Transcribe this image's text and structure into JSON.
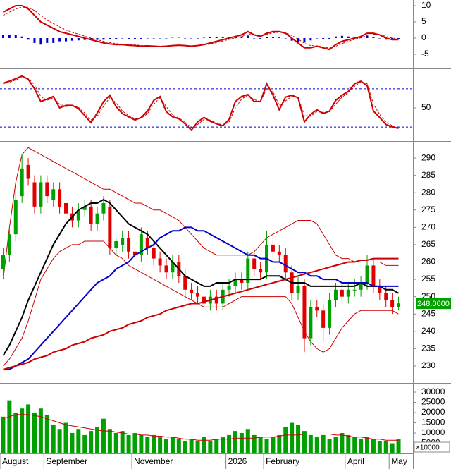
{
  "chart_data": [
    {
      "type": "macd",
      "ylim": [
        -9.35,
        11.74
      ],
      "yticks": [
        10,
        5,
        0,
        -5
      ],
      "histogram": {
        "color": "#0000cc",
        "values": [
          1,
          1,
          1,
          0.5,
          -0.5,
          -1.5,
          -2,
          -1.5,
          -1.5,
          -1,
          -1,
          -0.8,
          -0.7,
          -0.6,
          -0.5,
          -0.5,
          -0.5,
          -0.4,
          -0.3,
          -0.1,
          -0.2,
          -0.2,
          -0.2,
          -0.1,
          -0.1,
          -0.1,
          0,
          0.1,
          0.1,
          0,
          -0.1,
          0,
          0.1,
          0.3,
          0.4,
          0.4,
          0.4,
          0.5,
          0.5,
          0.8,
          0,
          -0.2,
          0.4,
          0.4,
          0.2,
          -0.1,
          -0.8,
          -1.2,
          -1.4,
          -0.7,
          -0.1,
          -0.3,
          -0.4,
          0.5,
          0.7,
          0.5,
          0.4,
          0.4,
          0.7,
          0.3,
          -0.1,
          -0.5,
          -0.5,
          -0.2
        ]
      },
      "series": [
        {
          "color": "#cc0000",
          "values": [
            8,
            9,
            10,
            10,
            9,
            7,
            5,
            4,
            3,
            2,
            1.5,
            1,
            0.5,
            0,
            -0.5,
            -1,
            -1.5,
            -1.8,
            -2,
            -2,
            -2.2,
            -2.3,
            -2.5,
            -2.4,
            -2.5,
            -2.6,
            -2.5,
            -2.3,
            -2.2,
            -2.3,
            -2.5,
            -2.3,
            -2,
            -1.5,
            -1,
            -0.5,
            0,
            0.5,
            1,
            2,
            1,
            0.5,
            1.5,
            2,
            2,
            1.5,
            0,
            -1.5,
            -3,
            -3,
            -2.5,
            -3,
            -3.5,
            -2,
            -1,
            -0.5,
            0,
            0.5,
            1.5,
            1.5,
            1,
            0,
            -0.5,
            -0.5
          ]
        },
        {
          "color": "#cc0000",
          "dashed": true,
          "values": [
            7,
            8,
            9,
            9.5,
            9.5,
            8.5,
            7,
            5.5,
            4.5,
            3.5,
            2.5,
            1.8,
            1.2,
            0.6,
            0,
            -0.5,
            -1,
            -1.4,
            -1.7,
            -1.9,
            -2,
            -2.1,
            -2.3,
            -2.3,
            -2.4,
            -2.5,
            -2.5,
            -2.4,
            -2.3,
            -2.3,
            -2.4,
            -2.3,
            -2.1,
            -1.8,
            -1.4,
            -0.9,
            -0.4,
            0,
            0.5,
            1.2,
            1,
            0.7,
            1.1,
            1.6,
            1.8,
            1.6,
            0.8,
            -0.3,
            -1.6,
            -2.3,
            -2.4,
            -2.7,
            -3.1,
            -2.5,
            -1.7,
            -1,
            -0.4,
            0.1,
            0.8,
            1.2,
            1.1,
            0.5,
            0,
            -0.3
          ]
        }
      ]
    },
    {
      "type": "oscillator",
      "ylim": [
        -2,
        112
      ],
      "yticks": [
        50
      ],
      "levels": [
        80,
        20
      ],
      "level_color": "#0000cc",
      "series": [
        {
          "color": "#cc0000",
          "values": [
            89,
            92,
            96,
            100,
            95,
            80,
            60,
            64,
            68,
            50,
            54,
            54,
            49,
            38,
            27,
            42,
            60,
            70,
            52,
            41,
            36,
            31,
            35,
            45,
            62,
            68,
            44,
            36,
            33,
            25,
            15,
            28,
            35,
            29,
            25,
            22,
            32,
            60,
            68,
            71,
            60,
            60,
            88,
            70,
            47,
            67,
            70,
            66,
            28,
            40,
            47,
            41,
            45,
            62,
            70,
            76,
            88,
            92,
            85,
            45,
            35,
            24,
            20,
            18
          ]
        },
        {
          "color": "#cc0000",
          "dashed": true,
          "values": [
            88,
            90,
            94,
            98,
            97,
            86,
            68,
            62,
            66,
            56,
            52,
            54,
            51,
            42,
            31,
            37,
            53,
            66,
            58,
            45,
            38,
            33,
            34,
            41,
            56,
            66,
            52,
            39,
            34,
            28,
            19,
            24,
            32,
            31,
            26,
            23,
            28,
            50,
            64,
            70,
            63,
            60,
            80,
            75,
            54,
            61,
            68,
            67,
            38,
            37,
            44,
            43,
            44,
            56,
            67,
            74,
            84,
            91,
            88,
            56,
            40,
            28,
            22,
            19
          ]
        }
      ]
    },
    {
      "type": "candlestick",
      "ylim": [
        225.1,
        294.9
      ],
      "yticks": [
        230,
        235,
        240,
        245,
        250,
        255,
        260,
        265,
        270,
        275,
        280,
        285,
        290
      ],
      "up_color": "#00a000",
      "down_color": "#e00000",
      "open": [
        258,
        262,
        268,
        279,
        288,
        283,
        276,
        283,
        278,
        281,
        277,
        274,
        272,
        275,
        276,
        271,
        274,
        276,
        264,
        265,
        267,
        263,
        262,
        267,
        264,
        261,
        259,
        257,
        260,
        256,
        252,
        251,
        250,
        248,
        250,
        248,
        252,
        253,
        255,
        254,
        261,
        258,
        257,
        265,
        263,
        262,
        257,
        251,
        253,
        238,
        247,
        246,
        241,
        249,
        252,
        250,
        252,
        252,
        254,
        259,
        253,
        251,
        249,
        247
      ],
      "high": [
        264,
        270,
        281,
        291,
        290,
        285,
        285,
        285,
        283,
        283,
        279,
        276,
        277,
        278,
        278,
        276,
        279,
        278,
        267,
        269,
        269,
        265,
        270,
        269,
        266,
        263,
        261,
        262,
        262,
        258,
        254,
        253,
        252,
        252,
        252,
        254,
        255,
        257,
        257,
        263,
        263,
        260,
        269,
        267,
        265,
        264,
        259,
        256,
        255,
        249,
        249,
        248,
        251,
        254,
        254,
        254,
        255,
        256,
        262,
        261,
        255,
        253,
        251,
        250
      ],
      "low": [
        256,
        260,
        266,
        277,
        282,
        274,
        274,
        277,
        276,
        274,
        272,
        270,
        270,
        273,
        269,
        269,
        272,
        262,
        262,
        263,
        261,
        260,
        260,
        262,
        259,
        257,
        255,
        255,
        254,
        250,
        249,
        248,
        246,
        246,
        246,
        246,
        250,
        251,
        252,
        252,
        256,
        255,
        255,
        261,
        260,
        255,
        249,
        249,
        234,
        236,
        244,
        237,
        239,
        247,
        248,
        248,
        250,
        250,
        252,
        251,
        249,
        247,
        245,
        246
      ],
      "close": [
        262,
        268,
        278,
        287,
        284,
        276,
        283,
        279,
        281,
        276,
        274,
        272,
        275,
        276,
        271,
        274,
        277,
        264,
        266,
        267,
        263,
        262,
        268,
        264,
        261,
        259,
        257,
        260,
        256,
        252,
        251,
        250,
        248,
        250,
        248,
        252,
        253,
        255,
        254,
        261,
        258,
        257,
        265,
        263,
        262,
        257,
        251,
        253,
        238,
        247,
        246,
        241,
        249,
        252,
        250,
        252,
        252,
        254,
        259,
        253,
        251,
        249,
        247,
        248.06
      ],
      "lines": [
        {
          "color": "#000000",
          "values": [
            233,
            236,
            240,
            244,
            249,
            253,
            257,
            261,
            265,
            268,
            271,
            273,
            275,
            276,
            277,
            277,
            278,
            277,
            275,
            273,
            271,
            270,
            269,
            268,
            266,
            264,
            262,
            260,
            258,
            256,
            255,
            254,
            253,
            253,
            254,
            254,
            254,
            255,
            255,
            255,
            255,
            255,
            256,
            256,
            256,
            255,
            254,
            254,
            254,
            253,
            253,
            253,
            253,
            253,
            253,
            253,
            253,
            254,
            253,
            253,
            253,
            252,
            252,
            251
          ]
        },
        {
          "color": "#0000cc",
          "values": [
            229,
            229,
            230,
            231,
            232,
            234,
            236,
            238,
            240,
            242,
            244,
            246,
            248,
            250,
            252,
            254,
            255,
            256,
            258,
            259,
            260,
            262,
            263,
            264,
            265,
            267,
            268,
            269,
            269,
            270,
            270,
            269,
            269,
            268,
            267,
            266,
            265,
            264,
            263,
            262,
            262,
            261,
            261,
            260,
            260,
            259,
            258,
            257,
            257,
            256,
            256,
            255,
            255,
            255,
            254,
            254,
            254,
            254,
            254,
            253,
            253,
            253,
            253,
            253
          ]
        },
        {
          "color": "#cc0000",
          "values": [
            229,
            229.5,
            230,
            230.5,
            231,
            232,
            232.5,
            233,
            234,
            234.5,
            235,
            236,
            236.5,
            237,
            238,
            238.5,
            239,
            240,
            240.5,
            241,
            242,
            242.5,
            243,
            244,
            244.5,
            245,
            246,
            246.5,
            247,
            247.5,
            248,
            248,
            248.5,
            249,
            249.5,
            250,
            250.5,
            251,
            251.5,
            252,
            252.5,
            253,
            253.5,
            254,
            254.5,
            255,
            255.5,
            256,
            256.5,
            257,
            257.5,
            258,
            258.5,
            259,
            259.5,
            260,
            260,
            260.5,
            260.5,
            261,
            261,
            261,
            261,
            261
          ]
        }
      ],
      "bands": [
        {
          "color": "#cc0000",
          "values": [
            255,
            270,
            283,
            291,
            293,
            292,
            291,
            290,
            289,
            288,
            287,
            286,
            285,
            284,
            283,
            282,
            281,
            281,
            280,
            279,
            278,
            277,
            277,
            276,
            275,
            275,
            274,
            273,
            272,
            270,
            268,
            266,
            264,
            263,
            262,
            262,
            262,
            262,
            262,
            262,
            263,
            265,
            267,
            268,
            269,
            270,
            271,
            272,
            272,
            272,
            271,
            268,
            265,
            262,
            261,
            261,
            260,
            260,
            260,
            260,
            260,
            259,
            259,
            259
          ]
        },
        {
          "color": "#cc0000",
          "values": [
            230,
            232,
            235,
            238,
            243,
            249,
            255,
            258,
            261,
            263,
            264,
            265,
            265,
            266,
            266,
            266,
            266,
            264,
            262,
            261,
            259,
            258,
            257,
            256,
            255,
            254,
            253,
            252,
            251,
            250,
            249,
            248,
            247,
            247,
            247,
            247,
            248,
            249,
            250,
            250,
            250,
            250,
            250,
            250,
            250,
            250,
            248,
            244,
            240,
            237,
            235,
            234,
            235,
            238,
            241,
            243,
            245,
            246,
            246,
            246,
            246,
            246,
            246,
            245
          ]
        }
      ],
      "last_label": "248.0600",
      "last_color": "#00a000"
    },
    {
      "type": "bar",
      "ylim": [
        0,
        34500
      ],
      "yticks": [
        5000,
        10000,
        15000,
        20000,
        25000,
        30000
      ],
      "color": "#00a000",
      "categories": [
        "August",
        null,
        null,
        null,
        null,
        null,
        null,
        "September",
        null,
        null,
        null,
        null,
        null,
        null,
        null,
        null,
        null,
        null,
        null,
        null,
        null,
        "November",
        null,
        null,
        null,
        null,
        null,
        null,
        null,
        null,
        null,
        null,
        null,
        null,
        null,
        null,
        "2026",
        null,
        null,
        null,
        null,
        null,
        "February",
        null,
        null,
        null,
        null,
        null,
        null,
        null,
        null,
        null,
        null,
        null,
        null,
        "April",
        null,
        null,
        null,
        null,
        null,
        null,
        "May",
        null
      ],
      "values": [
        18000,
        26000,
        20000,
        22000,
        24000,
        20000,
        22000,
        19000,
        14000,
        12000,
        15000,
        10000,
        12000,
        9000,
        11000,
        13000,
        17000,
        12000,
        10000,
        11000,
        9000,
        10000,
        9000,
        8000,
        9000,
        8000,
        7000,
        8000,
        7000,
        6000,
        7000,
        6000,
        8000,
        6000,
        7000,
        8000,
        9000,
        11000,
        10000,
        12000,
        9000,
        8000,
        7000,
        8000,
        9000,
        13000,
        15000,
        14000,
        11000,
        9000,
        8000,
        9000,
        7000,
        8000,
        10000,
        9000,
        8000,
        7000,
        8000,
        7000,
        6000,
        6000,
        5000,
        7000
      ],
      "lines": [
        {
          "color": "#cc0000",
          "values": [
            17000,
            18000,
            19000,
            19000,
            19000,
            18500,
            18000,
            17000,
            16000,
            15000,
            14000,
            13500,
            13000,
            12500,
            12000,
            11500,
            11000,
            11000,
            10500,
            10000,
            9500,
            9500,
            9000,
            9000,
            8500,
            8500,
            8000,
            8000,
            7500,
            7000,
            7000,
            6500,
            6500,
            6500,
            7000,
            7000,
            7000,
            7500,
            7500,
            7500,
            7500,
            8000,
            8000,
            8000,
            8500,
            9000,
            9000,
            9000,
            9500,
            9500,
            9500,
            9500,
            9500,
            9000,
            9000,
            8500,
            8000,
            8000,
            7500,
            7000,
            7000,
            6500,
            6500,
            6500
          ]
        }
      ],
      "unit_note": "×10000"
    }
  ]
}
